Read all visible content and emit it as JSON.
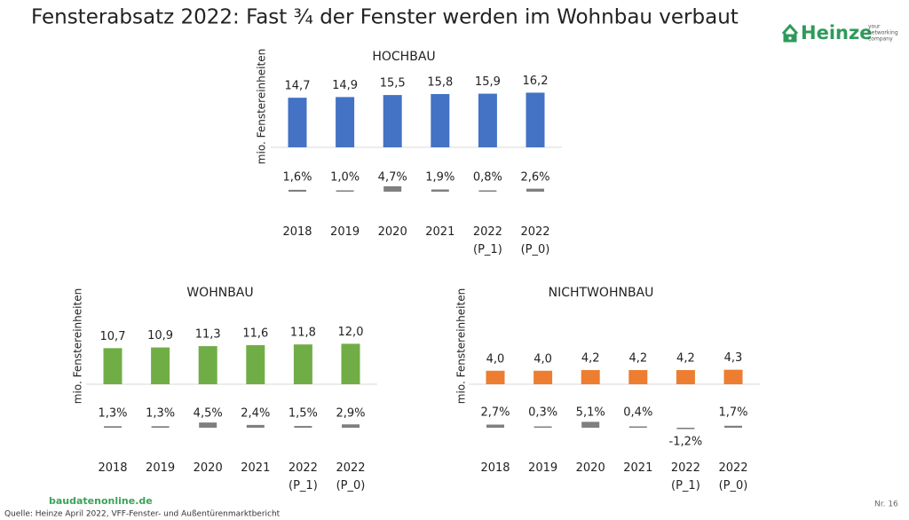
{
  "header": {
    "title": "Fensterabsatz 2022: Fast ¾ der Fenster werden im Wohnbau verbaut"
  },
  "logo": {
    "name": "Heinze",
    "tagline": [
      "your",
      "networking",
      "company"
    ]
  },
  "chart_data": [
    {
      "type": "bar",
      "title": "HOCHBAU",
      "y_label": "mio. Fenstereinheiten",
      "categories": [
        "2018",
        "2019",
        "2020",
        "2021",
        "2022\n(P_1)",
        "2022\n(P_0)"
      ],
      "values": [
        14.7,
        14.9,
        15.5,
        15.8,
        15.9,
        16.2
      ],
      "value_labels": [
        "14,7",
        "14,9",
        "15,5",
        "15,8",
        "15,9",
        "16,2"
      ],
      "color": "#4472c4",
      "growth": {
        "values": [
          1.6,
          1.0,
          4.7,
          1.9,
          0.8,
          2.6
        ],
        "value_labels": [
          "1,6%",
          "1,0%",
          "4,7%",
          "1,9%",
          "0,8%",
          "2,6%"
        ],
        "color": "#7f7f7f"
      }
    },
    {
      "type": "bar",
      "title": "WOHNBAU",
      "y_label": "mio. Fenstereinheiten",
      "categories": [
        "2018",
        "2019",
        "2020",
        "2021",
        "2022\n(P_1)",
        "2022\n(P_0)"
      ],
      "values": [
        10.7,
        10.9,
        11.3,
        11.6,
        11.8,
        12.0
      ],
      "value_labels": [
        "10,7",
        "10,9",
        "11,3",
        "11,6",
        "11,8",
        "12,0"
      ],
      "color": "#70ad47",
      "growth": {
        "values": [
          1.3,
          1.3,
          4.5,
          2.4,
          1.5,
          2.9
        ],
        "value_labels": [
          "1,3%",
          "1,3%",
          "4,5%",
          "2,4%",
          "1,5%",
          "2,9%"
        ],
        "color": "#7f7f7f"
      }
    },
    {
      "type": "bar",
      "title": "NICHTWOHNBAU",
      "y_label": "mio. Fenstereinheiten",
      "categories": [
        "2018",
        "2019",
        "2020",
        "2021",
        "2022\n(P_1)",
        "2022\n(P_0)"
      ],
      "values": [
        4.0,
        4.0,
        4.2,
        4.2,
        4.2,
        4.3
      ],
      "value_labels": [
        "4,0",
        "4,0",
        "4,2",
        "4,2",
        "4,2",
        "4,3"
      ],
      "color": "#ed7d31",
      "growth": {
        "values": [
          2.7,
          0.3,
          5.1,
          0.4,
          -1.2,
          1.7
        ],
        "value_labels": [
          "2,7%",
          "0,3%",
          "5,1%",
          "0,4%",
          "-1,2%",
          "1,7%"
        ],
        "color": "#7f7f7f"
      }
    }
  ],
  "footer": {
    "website": "baudatenonline.de",
    "source": "Quelle: Heinze April 2022, VFF-Fenster- und Außentürenmarktbericht",
    "page": "Nr. 16"
  }
}
